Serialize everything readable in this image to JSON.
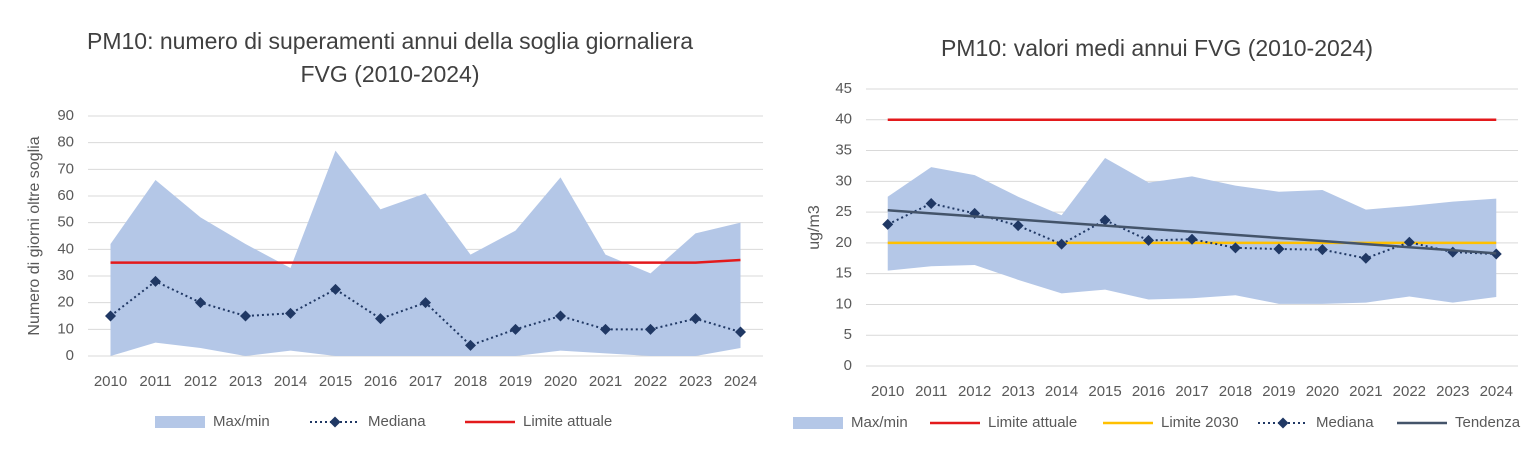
{
  "chart_data": [
    {
      "type": "line",
      "title": "PM10: numero di superamenti annui della soglia giornaliera FVG (2010-2024)",
      "ylabel": "Numero di giorni oltre soglia",
      "categories": [
        "2010",
        "2011",
        "2012",
        "2013",
        "2014",
        "2015",
        "2016",
        "2017",
        "2018",
        "2019",
        "2020",
        "2021",
        "2022",
        "2023",
        "2024"
      ],
      "ylim": [
        0,
        90
      ],
      "yticks": [
        0,
        10,
        20,
        30,
        40,
        50,
        60,
        70,
        80,
        90
      ],
      "grid": true,
      "legend": "bottom",
      "series": [
        {
          "name": "Max/min",
          "kind": "area",
          "color": "#b4c7e7",
          "values": [
            42,
            66,
            52,
            42,
            33,
            77,
            55,
            61,
            38,
            47,
            67,
            38,
            31,
            46,
            50
          ],
          "lower": [
            0,
            5,
            3,
            0,
            2,
            0,
            0,
            0,
            0,
            0,
            2,
            1,
            0,
            0,
            3
          ]
        },
        {
          "name": "Mediana",
          "kind": "line",
          "color": "#203864",
          "line_style": "dotted",
          "marker": "diamond",
          "values": [
            15,
            28,
            20,
            15,
            16,
            25,
            14,
            20,
            4,
            10,
            15,
            10,
            10,
            14,
            9
          ]
        },
        {
          "name": "Limite attuale",
          "kind": "line",
          "color": "#e31a1c",
          "line_style": "solid",
          "values": [
            35,
            35,
            35,
            35,
            35,
            35,
            35,
            35,
            35,
            35,
            35,
            35,
            35,
            35,
            36
          ]
        }
      ]
    },
    {
      "type": "line",
      "title": "PM10: valori medi annui FVG (2010-2024)",
      "ylabel": "ug/m3",
      "categories": [
        "2010",
        "2011",
        "2012",
        "2013",
        "2014",
        "2015",
        "2016",
        "2017",
        "2018",
        "2019",
        "2020",
        "2021",
        "2022",
        "2023",
        "2024"
      ],
      "ylim": [
        0,
        45
      ],
      "yticks": [
        0,
        5,
        10,
        15,
        20,
        25,
        30,
        35,
        40,
        45
      ],
      "grid": true,
      "legend": "bottom",
      "series": [
        {
          "name": "Max/min",
          "kind": "area",
          "color": "#b4c7e7",
          "values": [
            27.5,
            32.3,
            31,
            27.5,
            24.5,
            33.8,
            29.8,
            30.8,
            29.3,
            28.3,
            28.6,
            25.4,
            26,
            26.7,
            27.2
          ],
          "lower": [
            15.5,
            16.2,
            16.4,
            14,
            11.8,
            12.4,
            10.8,
            11,
            11.5,
            10.1,
            10.1,
            10.3,
            11.3,
            10.3,
            11.2
          ]
        },
        {
          "name": "Limite attuale",
          "kind": "line",
          "color": "#e31a1c",
          "line_style": "solid",
          "values": [
            40,
            40,
            40,
            40,
            40,
            40,
            40,
            40,
            40,
            40,
            40,
            40,
            40,
            40,
            40
          ]
        },
        {
          "name": "Limite 2030",
          "kind": "line",
          "color": "#ffc000",
          "line_style": "solid",
          "values": [
            20,
            20,
            20,
            20,
            20,
            20,
            20,
            20,
            20,
            20,
            20,
            20,
            20,
            20,
            20
          ]
        },
        {
          "name": "Mediana",
          "kind": "line",
          "color": "#203864",
          "line_style": "dotted",
          "marker": "diamond",
          "values": [
            23,
            26.4,
            24.8,
            22.8,
            19.8,
            23.7,
            20.4,
            20.6,
            19.2,
            19,
            18.9,
            17.5,
            20.1,
            18.5,
            18.2
          ]
        },
        {
          "name": "Tendenza",
          "kind": "line",
          "color": "#44546a",
          "line_style": "solid",
          "values": [
            25.3,
            24.8,
            24.3,
            23.8,
            23.3,
            22.8,
            22.3,
            21.8,
            21.3,
            20.8,
            20.3,
            19.8,
            19.3,
            18.8,
            18.3
          ]
        }
      ]
    }
  ]
}
